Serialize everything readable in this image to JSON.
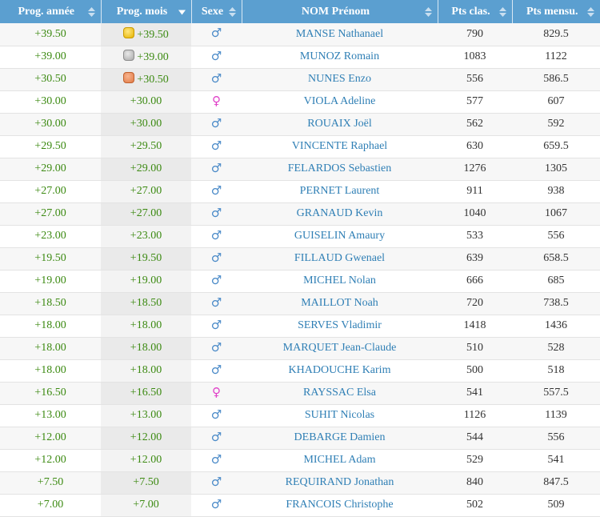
{
  "colors": {
    "header_bg": "#5b9fd0",
    "progress_green": "#3c8a12",
    "name_blue": "#2f7fb5",
    "male_icon": "#4a8ac8",
    "female_icon": "#e040c8"
  },
  "headers": [
    {
      "label": "Prog. année",
      "sort": "unsorted"
    },
    {
      "label": "Prog. mois",
      "sort": "descending"
    },
    {
      "label": "Sexe",
      "sort": "unsorted"
    },
    {
      "label": "NOM Prénom",
      "sort": "unsorted"
    },
    {
      "label": "Pts clas.",
      "sort": "unsorted"
    },
    {
      "label": "Pts mensu.",
      "sort": "unsorted"
    }
  ],
  "rows": [
    {
      "prog_annee": "+39.50",
      "prog_mois": "+39.50",
      "medal": "gold",
      "sex": "male",
      "sex_icon": "male-icon",
      "name": "MANSE Nathanael",
      "pts_clas": "790",
      "pts_mensu": "829.5"
    },
    {
      "prog_annee": "+39.00",
      "prog_mois": "+39.00",
      "medal": "silver",
      "sex": "male",
      "sex_icon": "male-icon",
      "name": "MUNOZ Romain",
      "pts_clas": "1083",
      "pts_mensu": "1122"
    },
    {
      "prog_annee": "+30.50",
      "prog_mois": "+30.50",
      "medal": "bronze",
      "sex": "male",
      "sex_icon": "male-icon",
      "name": "NUNES Enzo",
      "pts_clas": "556",
      "pts_mensu": "586.5"
    },
    {
      "prog_annee": "+30.00",
      "prog_mois": "+30.00",
      "medal": "",
      "sex": "female",
      "sex_icon": "female-icon",
      "name": "VIOLA Adeline",
      "pts_clas": "577",
      "pts_mensu": "607"
    },
    {
      "prog_annee": "+30.00",
      "prog_mois": "+30.00",
      "medal": "",
      "sex": "male",
      "sex_icon": "male-icon",
      "name": "ROUAIX Joël",
      "pts_clas": "562",
      "pts_mensu": "592"
    },
    {
      "prog_annee": "+29.50",
      "prog_mois": "+29.50",
      "medal": "",
      "sex": "male",
      "sex_icon": "male-icon",
      "name": "VINCENTE Raphael",
      "pts_clas": "630",
      "pts_mensu": "659.5"
    },
    {
      "prog_annee": "+29.00",
      "prog_mois": "+29.00",
      "medal": "",
      "sex": "male",
      "sex_icon": "male-icon",
      "name": "FELARDOS Sebastien",
      "pts_clas": "1276",
      "pts_mensu": "1305"
    },
    {
      "prog_annee": "+27.00",
      "prog_mois": "+27.00",
      "medal": "",
      "sex": "male",
      "sex_icon": "male-icon",
      "name": "PERNET Laurent",
      "pts_clas": "911",
      "pts_mensu": "938"
    },
    {
      "prog_annee": "+27.00",
      "prog_mois": "+27.00",
      "medal": "",
      "sex": "male",
      "sex_icon": "male-icon",
      "name": "GRANAUD Kevin",
      "pts_clas": "1040",
      "pts_mensu": "1067"
    },
    {
      "prog_annee": "+23.00",
      "prog_mois": "+23.00",
      "medal": "",
      "sex": "male",
      "sex_icon": "male-icon",
      "name": "GUISELIN Amaury",
      "pts_clas": "533",
      "pts_mensu": "556"
    },
    {
      "prog_annee": "+19.50",
      "prog_mois": "+19.50",
      "medal": "",
      "sex": "male",
      "sex_icon": "male-icon",
      "name": "FILLAUD Gwenael",
      "pts_clas": "639",
      "pts_mensu": "658.5"
    },
    {
      "prog_annee": "+19.00",
      "prog_mois": "+19.00",
      "medal": "",
      "sex": "male",
      "sex_icon": "male-icon",
      "name": "MICHEL Nolan",
      "pts_clas": "666",
      "pts_mensu": "685"
    },
    {
      "prog_annee": "+18.50",
      "prog_mois": "+18.50",
      "medal": "",
      "sex": "male",
      "sex_icon": "male-icon",
      "name": "MAILLOT Noah",
      "pts_clas": "720",
      "pts_mensu": "738.5"
    },
    {
      "prog_annee": "+18.00",
      "prog_mois": "+18.00",
      "medal": "",
      "sex": "male",
      "sex_icon": "male-icon",
      "name": "SERVES Vladimir",
      "pts_clas": "1418",
      "pts_mensu": "1436"
    },
    {
      "prog_annee": "+18.00",
      "prog_mois": "+18.00",
      "medal": "",
      "sex": "male",
      "sex_icon": "male-icon",
      "name": "MARQUET Jean-Claude",
      "pts_clas": "510",
      "pts_mensu": "528"
    },
    {
      "prog_annee": "+18.00",
      "prog_mois": "+18.00",
      "medal": "",
      "sex": "male",
      "sex_icon": "male-icon",
      "name": "KHADOUCHE Karim",
      "pts_clas": "500",
      "pts_mensu": "518"
    },
    {
      "prog_annee": "+16.50",
      "prog_mois": "+16.50",
      "medal": "",
      "sex": "female",
      "sex_icon": "female-icon",
      "name": "RAYSSAC Elsa",
      "pts_clas": "541",
      "pts_mensu": "557.5"
    },
    {
      "prog_annee": "+13.00",
      "prog_mois": "+13.00",
      "medal": "",
      "sex": "male",
      "sex_icon": "male-icon",
      "name": "SUHIT Nicolas",
      "pts_clas": "1126",
      "pts_mensu": "1139"
    },
    {
      "prog_annee": "+12.00",
      "prog_mois": "+12.00",
      "medal": "",
      "sex": "male",
      "sex_icon": "male-icon",
      "name": "DEBARGE Damien",
      "pts_clas": "544",
      "pts_mensu": "556"
    },
    {
      "prog_annee": "+12.00",
      "prog_mois": "+12.00",
      "medal": "",
      "sex": "male",
      "sex_icon": "male-icon",
      "name": "MICHEL Adam",
      "pts_clas": "529",
      "pts_mensu": "541"
    },
    {
      "prog_annee": "+7.50",
      "prog_mois": "+7.50",
      "medal": "",
      "sex": "male",
      "sex_icon": "male-icon",
      "name": "REQUIRAND Jonathan",
      "pts_clas": "840",
      "pts_mensu": "847.5"
    },
    {
      "prog_annee": "+7.00",
      "prog_mois": "+7.00",
      "medal": "",
      "sex": "male",
      "sex_icon": "male-icon",
      "name": "FRANCOIS Christophe",
      "pts_clas": "502",
      "pts_mensu": "509"
    }
  ]
}
